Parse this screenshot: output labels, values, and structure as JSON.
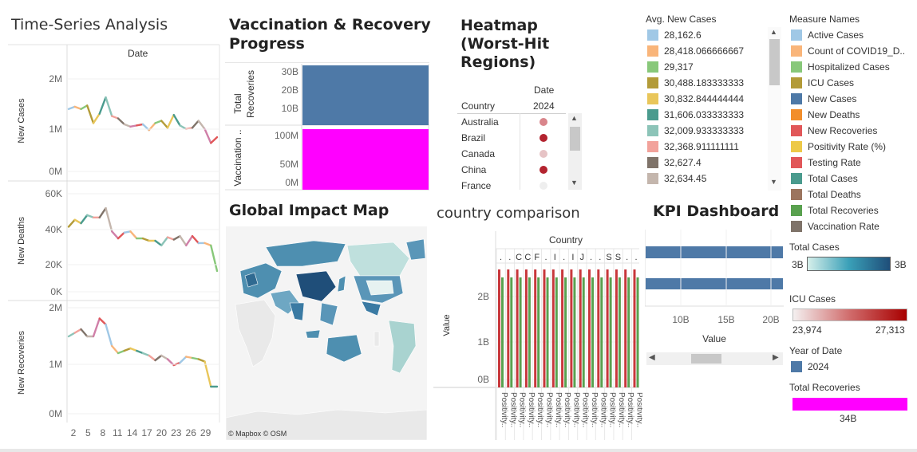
{
  "timeseries": {
    "title": "Time-Series Analysis",
    "header": "Date",
    "x_ticks": [
      "2",
      "5",
      "8",
      "11",
      "14",
      "17",
      "20",
      "23",
      "26",
      "29"
    ],
    "rows": [
      {
        "ylabel": "New Cases",
        "ticks": [
          "2M",
          "1M",
          "0M"
        ]
      },
      {
        "ylabel": "New Deaths",
        "ticks": [
          "60K",
          "40K",
          "20K",
          "0K"
        ]
      },
      {
        "ylabel": "New Recoveries",
        "ticks": [
          "2M",
          "1M",
          "0M"
        ]
      }
    ]
  },
  "vaccination": {
    "title_line1": "Vaccination & Recovery",
    "title_line2": "Progress",
    "top_label_line1": "Total",
    "top_label_line2": "Recoveries",
    "top_ticks": [
      "30B",
      "20B",
      "10B"
    ],
    "bottom_label": "Vaccination ..",
    "bottom_ticks": [
      "100M",
      "50M",
      "0M"
    ]
  },
  "heatmap": {
    "title_line1": "Heatmap",
    "title_line2": "(Worst-Hit",
    "title_line3": "Regions)",
    "header_date": "Date",
    "header_country": "Country",
    "header_year": "2024",
    "countries": [
      "Australia",
      "Brazil",
      "Canada",
      "China",
      "France"
    ],
    "dot_colors": [
      "#d9858b",
      "#b3232f",
      "#e6c3c5",
      "#b3232f",
      "#eeeeee"
    ]
  },
  "map": {
    "title": "Global Impact Map",
    "attribution": "© Mapbox © OSM"
  },
  "comparison": {
    "title": "country comparison",
    "header": "Country",
    "country_headers": [
      ".",
      ".",
      "C",
      "C",
      "F",
      ".",
      "I",
      ".",
      "I",
      "J",
      ".",
      ".",
      "S",
      "S",
      ".",
      "."
    ],
    "y_label": "Value",
    "y_ticks": [
      "2B",
      "1B",
      "0B"
    ],
    "x_labels": [
      "Positivity..",
      "Positivity..",
      "Positivity..",
      "Positivity..",
      "Positivity..",
      "Positivity..",
      "Positivity..",
      "Positivity..",
      "Positivity..",
      "Positivity..",
      "Positivity..",
      "Positivity..",
      "Positivity..",
      "Positivity..",
      "Positivity..",
      "Positivity.."
    ]
  },
  "kpi": {
    "title": "KPI Dashboard",
    "x_ticks": [
      "10B",
      "15B",
      "20B"
    ],
    "x_label": "Value"
  },
  "avg_new_cases": {
    "title": "Avg. New Cases",
    "items": [
      {
        "label": "28,162.6",
        "color": "#a0c8e6"
      },
      {
        "label": "28,418.066666667",
        "color": "#f9b57a"
      },
      {
        "label": "29,317",
        "color": "#88c87a"
      },
      {
        "label": "30,488.183333333",
        "color": "#b39b38"
      },
      {
        "label": "30,832.844444444",
        "color": "#e9c65a"
      },
      {
        "label": "31,606.033333333",
        "color": "#4a9b8e"
      },
      {
        "label": "32,009.933333333",
        "color": "#8cc4b8"
      },
      {
        "label": "32,368.911111111",
        "color": "#f2a29b"
      },
      {
        "label": "32,627.4",
        "color": "#7f7369"
      },
      {
        "label": "32,634.45",
        "color": "#c4b6ad"
      }
    ]
  },
  "measure_names": {
    "title": "Measure Names",
    "items": [
      {
        "label": "Active Cases",
        "color": "#a0c8e6"
      },
      {
        "label": "Count of COVID19_D..",
        "color": "#f9b57a"
      },
      {
        "label": "Hospitalized Cases",
        "color": "#88c87a"
      },
      {
        "label": "ICU Cases",
        "color": "#b39b38"
      },
      {
        "label": "New Cases",
        "color": "#4e79a7"
      },
      {
        "label": "New Deaths",
        "color": "#f28e2b"
      },
      {
        "label": "New Recoveries",
        "color": "#e15759"
      },
      {
        "label": "Positivity Rate (%)",
        "color": "#edc948"
      },
      {
        "label": "Testing Rate",
        "color": "#e15759"
      },
      {
        "label": "Total Cases",
        "color": "#4a9b8e"
      },
      {
        "label": "Total Deaths",
        "color": "#9c755f"
      },
      {
        "label": "Total Recoveries",
        "color": "#59a14f"
      },
      {
        "label": "Vaccination Rate",
        "color": "#7f7369"
      }
    ]
  },
  "total_cases_legend": {
    "title": "Total Cases",
    "min": "3B",
    "max": "3B"
  },
  "icu_legend": {
    "title": "ICU Cases",
    "min": "23,974",
    "max": "27,313"
  },
  "year_legend": {
    "title": "Year of Date",
    "item": "2024",
    "color": "#4e79a7"
  },
  "total_recoveries_legend": {
    "title": "Total Recoveries",
    "value": "34B",
    "color": "#ff00ff"
  }
}
